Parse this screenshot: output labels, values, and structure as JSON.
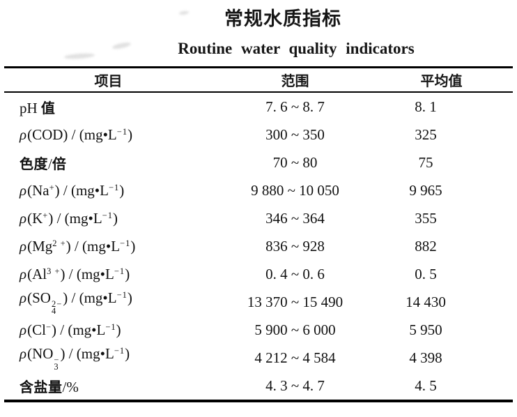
{
  "page": {
    "title_zh": "常规水质指标",
    "title_en": "Routine water quality indicators"
  },
  "colors": {
    "background": "#ffffff",
    "text": "#111111",
    "rule": "#000000"
  },
  "table": {
    "columns": [
      {
        "key": "item",
        "label": "项目"
      },
      {
        "key": "range",
        "label": "范围"
      },
      {
        "key": "avg",
        "label": "平均值"
      }
    ],
    "rows": [
      {
        "item": "pH 值",
        "range": "7. 6 ~ 8. 7",
        "avg": "8. 1"
      },
      {
        "item": "ρ(COD) / (mg•L^{−1})",
        "range": "300 ~ 350",
        "avg": "325"
      },
      {
        "item": "色度/倍",
        "range": "70 ~ 80",
        "avg": "75"
      },
      {
        "item": "ρ(Na^{+}) / (mg•L^{−1})",
        "range": "9 880 ~ 10 050",
        "avg": "9 965"
      },
      {
        "item": "ρ(K^{+}) / (mg•L^{−1})",
        "range": "346 ~ 364",
        "avg": "355"
      },
      {
        "item": "ρ(Mg^{2 +}) / (mg•L^{−1})",
        "range": "836 ~ 928",
        "avg": "882"
      },
      {
        "item": "ρ(Al^{3 +}) / (mg•L^{−1})",
        "range": "0. 4 ~ 0. 6",
        "avg": "0. 5"
      },
      {
        "item": "ρ(SO%{2−|4}) / (mg•L^{−1})",
        "range": "13 370 ~ 15 490",
        "avg": "14 430"
      },
      {
        "item": "ρ(Cl^{−}) / (mg•L^{−1})",
        "range": "5 900 ~ 6 000",
        "avg": "5 950"
      },
      {
        "item": "ρ(NO%{−|3}) / (mg•L^{−1})",
        "range": "4 212 ~ 4 584",
        "avg": "4 398"
      },
      {
        "item": "含盐量/%",
        "range": "4. 3 ~ 4. 7",
        "avg": "4. 5"
      }
    ]
  }
}
